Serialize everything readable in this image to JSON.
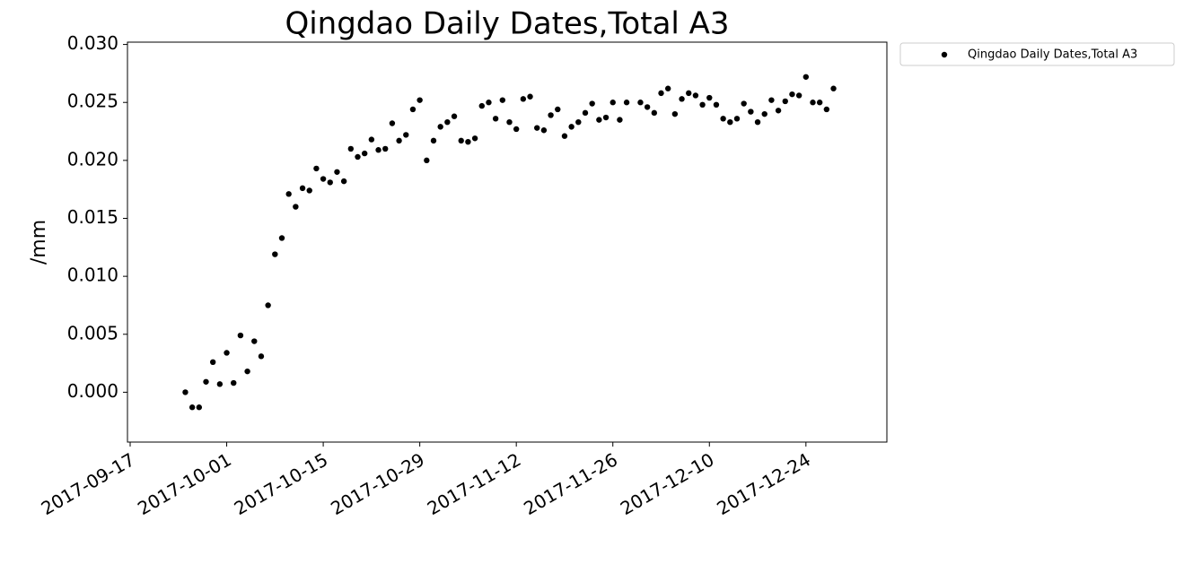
{
  "chart_data": {
    "type": "scatter",
    "title": "Qingdao Daily Dates,Total A3",
    "y_label": "/mm",
    "series": [
      {
        "name": "Qingdao Daily Dates,Total A3",
        "color": "#000000",
        "x": [
          "2017-09-25",
          "2017-09-26",
          "2017-09-27",
          "2017-09-28",
          "2017-09-29",
          "2017-09-30",
          "2017-10-01",
          "2017-10-02",
          "2017-10-03",
          "2017-10-04",
          "2017-10-05",
          "2017-10-06",
          "2017-10-07",
          "2017-10-08",
          "2017-10-09",
          "2017-10-10",
          "2017-10-11",
          "2017-10-12",
          "2017-10-13",
          "2017-10-14",
          "2017-10-15",
          "2017-10-16",
          "2017-10-17",
          "2017-10-18",
          "2017-10-19",
          "2017-10-20",
          "2017-10-21",
          "2017-10-22",
          "2017-10-23",
          "2017-10-24",
          "2017-10-25",
          "2017-10-26",
          "2017-10-27",
          "2017-10-28",
          "2017-10-29",
          "2017-10-30",
          "2017-10-31",
          "2017-11-01",
          "2017-11-02",
          "2017-11-03",
          "2017-11-04",
          "2017-11-05",
          "2017-11-06",
          "2017-11-07",
          "2017-11-08",
          "2017-11-09",
          "2017-11-10",
          "2017-11-11",
          "2017-11-12",
          "2017-11-13",
          "2017-11-14",
          "2017-11-15",
          "2017-11-16",
          "2017-11-17",
          "2017-11-18",
          "2017-11-19",
          "2017-11-20",
          "2017-11-21",
          "2017-11-22",
          "2017-11-23",
          "2017-11-24",
          "2017-11-25",
          "2017-11-26",
          "2017-11-27",
          "2017-11-28",
          "2017-11-30",
          "2017-12-01",
          "2017-12-02",
          "2017-12-03",
          "2017-12-04",
          "2017-12-05",
          "2017-12-06",
          "2017-12-07",
          "2017-12-08",
          "2017-12-09",
          "2017-12-10",
          "2017-12-11",
          "2017-12-12",
          "2017-12-13",
          "2017-12-14",
          "2017-12-15",
          "2017-12-16",
          "2017-12-17",
          "2017-12-18",
          "2017-12-19",
          "2017-12-20",
          "2017-12-21",
          "2017-12-22",
          "2017-12-23",
          "2017-12-24",
          "2017-12-25",
          "2017-12-26",
          "2017-12-27",
          "2017-12-28"
        ],
        "values": [
          0.0,
          -0.0013,
          -0.0013,
          0.0009,
          0.0026,
          0.0007,
          0.0034,
          0.0008,
          0.0049,
          0.0018,
          0.0044,
          0.0031,
          0.0075,
          0.0119,
          0.0133,
          0.0171,
          0.016,
          0.0176,
          0.0174,
          0.0193,
          0.0184,
          0.0181,
          0.019,
          0.0182,
          0.021,
          0.0203,
          0.0206,
          0.0218,
          0.0209,
          0.021,
          0.0232,
          0.0217,
          0.0222,
          0.0244,
          0.0252,
          0.02,
          0.0217,
          0.0229,
          0.0233,
          0.0238,
          0.0217,
          0.0216,
          0.0219,
          0.0247,
          0.025,
          0.0236,
          0.0252,
          0.0233,
          0.0227,
          0.0253,
          0.0255,
          0.0228,
          0.0226,
          0.0239,
          0.0244,
          0.0221,
          0.0229,
          0.0233,
          0.0241,
          0.0249,
          0.0235,
          0.0237,
          0.025,
          0.0235,
          0.025,
          0.025,
          0.0246,
          0.0241,
          0.0258,
          0.0262,
          0.024,
          0.0253,
          0.0258,
          0.0256,
          0.0248,
          0.0254,
          0.0248,
          0.0236,
          0.0233,
          0.0236,
          0.0249,
          0.0242,
          0.0233,
          0.024,
          0.0252,
          0.0243,
          0.0251,
          0.0257,
          0.0256,
          0.0272,
          0.025,
          0.025,
          0.0244,
          0.0262
        ]
      }
    ],
    "xlim": [
      "2017-09-17",
      "2018-01-05"
    ],
    "xticks": [
      "2017-09-17",
      "2017-10-01",
      "2017-10-15",
      "2017-10-29",
      "2017-11-12",
      "2017-11-26",
      "2017-12-10",
      "2017-12-24"
    ],
    "ylim": [
      -0.0043,
      0.0302
    ],
    "yticks": [
      {
        "value": 0.0,
        "label": "0.000"
      },
      {
        "value": 0.005,
        "label": "0.005"
      },
      {
        "value": 0.01,
        "label": "0.010"
      },
      {
        "value": 0.015,
        "label": "0.015"
      },
      {
        "value": 0.02,
        "label": "0.020"
      },
      {
        "value": 0.025,
        "label": "0.025"
      },
      {
        "value": 0.03,
        "label": "0.030"
      }
    ],
    "grid": false,
    "legend": "outside-upper-right"
  }
}
